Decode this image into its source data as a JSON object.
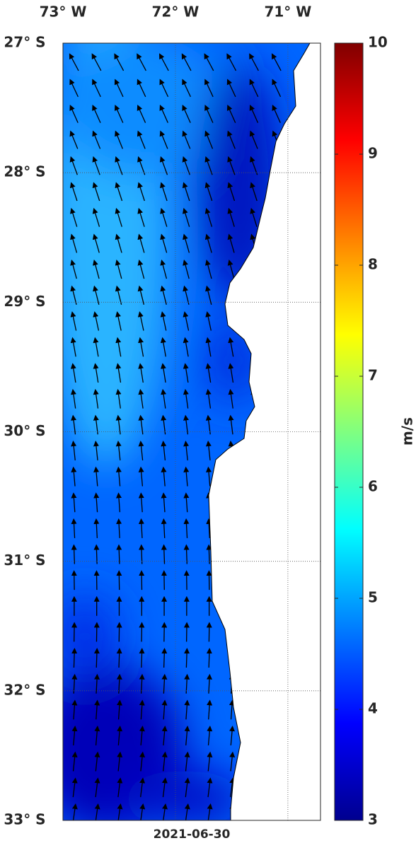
{
  "chart_data": {
    "type": "map",
    "xlim": [
      -73,
      -70.71
    ],
    "xticks": [
      {
        "value": -73,
        "label": "73° W"
      },
      {
        "value": -72,
        "label": "72° W"
      },
      {
        "value": -71,
        "label": "71° W"
      }
    ],
    "ylim": [
      -33,
      -27
    ],
    "yticks": [
      {
        "value": -27,
        "label": "27° S"
      },
      {
        "value": -28,
        "label": "28° S"
      },
      {
        "value": -29,
        "label": "29° S"
      },
      {
        "value": -30,
        "label": "30° S"
      },
      {
        "value": -31,
        "label": "31° S"
      },
      {
        "value": -32,
        "label": "32° S"
      },
      {
        "value": -33,
        "label": "33° S"
      }
    ],
    "grid": true,
    "date": "2021-06-30",
    "colorbar": {
      "label": "m/s",
      "lim": [
        3,
        10
      ],
      "ticks": [
        3,
        4,
        5,
        6,
        7,
        8,
        9,
        10
      ]
    },
    "arrow_lons": [
      -72.9,
      -72.7,
      -72.5,
      -72.3,
      -72.1,
      -71.9,
      -71.7,
      -71.5,
      -71.3,
      -71.1
    ],
    "arrow_lats": [
      -27.15,
      -27.35,
      -27.55,
      -27.75,
      -27.95,
      -28.15,
      -28.35,
      -28.55,
      -28.75,
      -28.95,
      -29.15,
      -29.35,
      -29.55,
      -29.75,
      -29.95,
      -30.15,
      -30.35,
      -30.55,
      -30.75,
      -30.95,
      -31.15,
      -31.35,
      -31.55,
      -31.75,
      -31.95,
      -32.15,
      -32.35,
      -32.55,
      -32.75,
      -32.95
    ],
    "arrow_headings_deg": [
      -28,
      -25,
      -24,
      -22,
      -20,
      -18,
      -17,
      -16,
      -15,
      -14,
      -12,
      -10,
      -9,
      -8,
      -7,
      -6,
      -5,
      -4,
      -3,
      -2,
      -1,
      0,
      1,
      2,
      3,
      4,
      5,
      6,
      7,
      8
    ]
  }
}
